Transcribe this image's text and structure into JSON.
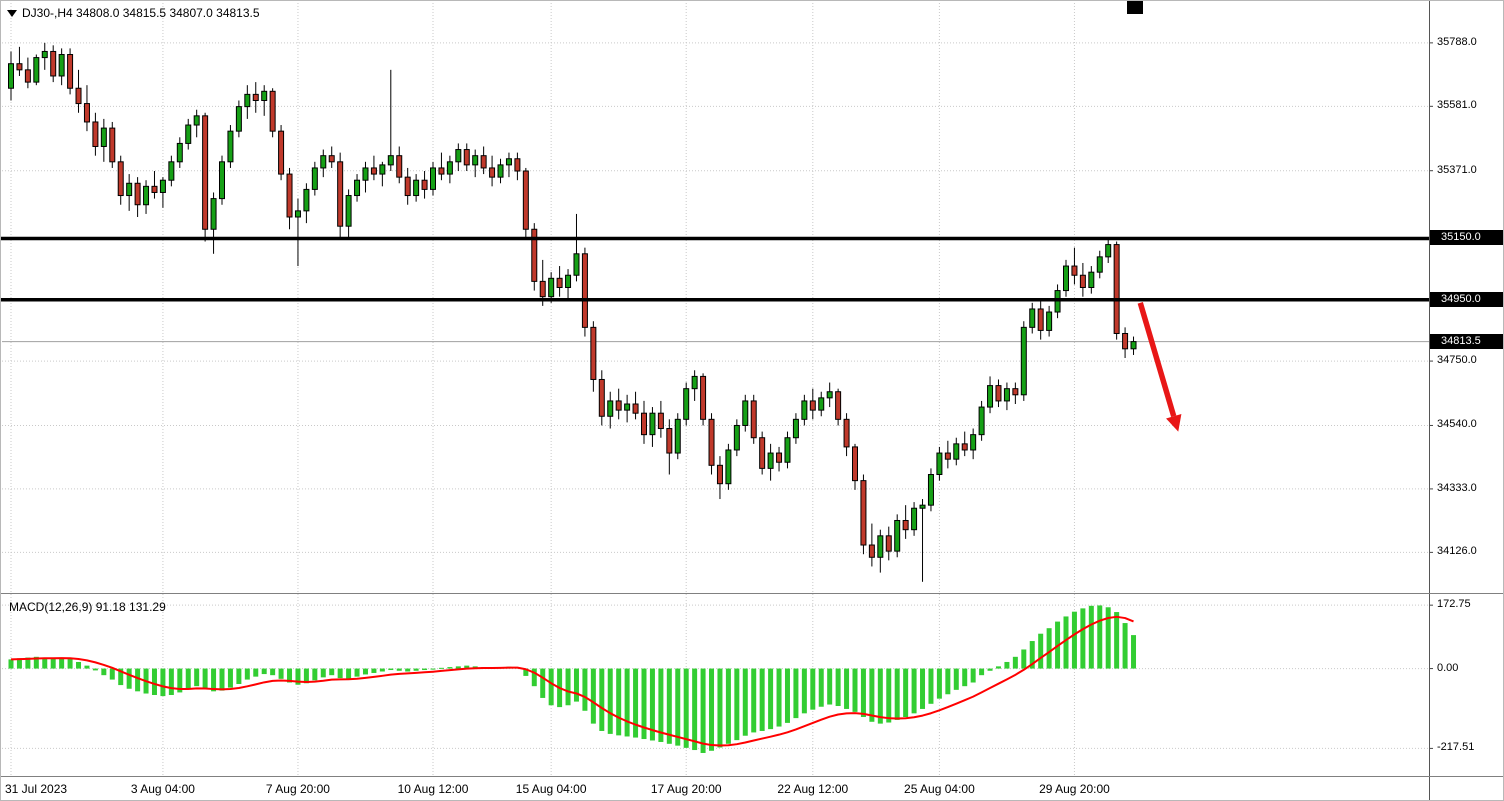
{
  "header": {
    "symbol": "DJ30-",
    "timeframe": "H4",
    "open": "34808.0",
    "high": "34815.5",
    "low": "34807.0",
    "close": "34813.5",
    "display": "DJ30-,H4 34808.0 34815.5 34807.0 34813.5",
    "dropdown_icon": "symbol-dropdown-triangle"
  },
  "colors": {
    "up": "#16a016",
    "down": "#c0392b",
    "wick": "#000000",
    "grid": "#c9c9c9",
    "macd_hist": "#32cd32",
    "macd_signal": "#ff0000",
    "level_line": "#000000",
    "arrow": "#e81717",
    "price_line": "#a0a0a0",
    "label_box_bg": "#000000",
    "label_box_fg": "#ffffff"
  },
  "price_axis": {
    "ticks": [
      {
        "v": 35788.0,
        "label": "35788.0"
      },
      {
        "v": 35581.0,
        "label": "35581.0"
      },
      {
        "v": 35371.0,
        "label": "35371.0"
      },
      {
        "v": 34750.0,
        "label": "34750.0"
      },
      {
        "v": 34540.0,
        "label": "34540.0"
      },
      {
        "v": 34333.0,
        "label": "34333.0"
      },
      {
        "v": 34126.0,
        "label": "34126.0"
      }
    ],
    "level_labels": [
      {
        "v": 35150.0,
        "label": "35150.0"
      },
      {
        "v": 34950.0,
        "label": "34950.0"
      },
      {
        "v": 34813.5,
        "label": "34813.5"
      }
    ]
  },
  "x_axis": {
    "labels": [
      {
        "text": "31 Jul 2023",
        "bar": 0
      },
      {
        "text": "3 Aug 04:00",
        "bar": 18
      },
      {
        "text": "7 Aug 20:00",
        "bar": 34
      },
      {
        "text": "10 Aug 12:00",
        "bar": 50
      },
      {
        "text": "15 Aug 04:00",
        "bar": 64
      },
      {
        "text": "17 Aug 20:00",
        "bar": 80
      },
      {
        "text": "22 Aug 12:00",
        "bar": 95
      },
      {
        "text": "25 Aug 04:00",
        "bar": 110
      },
      {
        "text": "29 Aug 20:00",
        "bar": 126
      }
    ]
  },
  "chart_data": {
    "type": "candlestick",
    "title": "DJ30- H4 price chart with MACD",
    "symbol": "DJ30-",
    "timeframe": "H4",
    "price_ylim": [
      34000,
      35905
    ],
    "hlines": [
      35150.0,
      34950.0
    ],
    "current_price": 34813.5,
    "arrow": {
      "from_bar": 133.8,
      "from_price": 34940,
      "to_bar": 138.3,
      "to_price": 34520
    },
    "candles": [
      [
        35640,
        35760,
        35600,
        35720
      ],
      [
        35720,
        35775,
        35680,
        35700
      ],
      [
        35700,
        35740,
        35640,
        35660
      ],
      [
        35660,
        35750,
        35650,
        35740
      ],
      [
        35740,
        35788,
        35700,
        35760
      ],
      [
        35760,
        35780,
        35660,
        35680
      ],
      [
        35680,
        35770,
        35650,
        35750
      ],
      [
        35750,
        35770,
        35620,
        35640
      ],
      [
        35640,
        35700,
        35560,
        35590
      ],
      [
        35590,
        35650,
        35500,
        35530
      ],
      [
        35530,
        35560,
        35420,
        35450
      ],
      [
        35450,
        35540,
        35400,
        35510
      ],
      [
        35510,
        35530,
        35380,
        35400
      ],
      [
        35400,
        35420,
        35260,
        35290
      ],
      [
        35290,
        35360,
        35240,
        35330
      ],
      [
        35330,
        35350,
        35220,
        35260
      ],
      [
        35260,
        35340,
        35230,
        35320
      ],
      [
        35320,
        35370,
        35280,
        35300
      ],
      [
        35300,
        35350,
        35250,
        35340
      ],
      [
        35340,
        35420,
        35320,
        35400
      ],
      [
        35400,
        35480,
        35380,
        35460
      ],
      [
        35460,
        35540,
        35440,
        35520
      ],
      [
        35520,
        35570,
        35480,
        35550
      ],
      [
        35550,
        35560,
        35140,
        35180
      ],
      [
        35180,
        35300,
        35100,
        35280
      ],
      [
        35280,
        35420,
        35260,
        35400
      ],
      [
        35400,
        35520,
        35380,
        35500
      ],
      [
        35500,
        35600,
        35480,
        35580
      ],
      [
        35580,
        35650,
        35540,
        35620
      ],
      [
        35620,
        35660,
        35560,
        35600
      ],
      [
        35600,
        35650,
        35550,
        35630
      ],
      [
        35630,
        35640,
        35480,
        35500
      ],
      [
        35500,
        35520,
        35340,
        35360
      ],
      [
        35360,
        35380,
        35180,
        35220
      ],
      [
        35220,
        35280,
        35060,
        35240
      ],
      [
        35240,
        35330,
        35200,
        35310
      ],
      [
        35310,
        35400,
        35290,
        35380
      ],
      [
        35380,
        35440,
        35350,
        35420
      ],
      [
        35420,
        35450,
        35380,
        35400
      ],
      [
        35400,
        35430,
        35150,
        35190
      ],
      [
        35190,
        35310,
        35150,
        35290
      ],
      [
        35290,
        35360,
        35270,
        35340
      ],
      [
        35340,
        35400,
        35300,
        35380
      ],
      [
        35380,
        35420,
        35340,
        35360
      ],
      [
        35360,
        35400,
        35320,
        35390
      ],
      [
        35390,
        35700,
        35370,
        35420
      ],
      [
        35420,
        35450,
        35330,
        35350
      ],
      [
        35350,
        35380,
        35260,
        35290
      ],
      [
        35290,
        35360,
        35270,
        35340
      ],
      [
        35340,
        35370,
        35280,
        35310
      ],
      [
        35310,
        35400,
        35290,
        35380
      ],
      [
        35380,
        35430,
        35340,
        35360
      ],
      [
        35360,
        35420,
        35330,
        35400
      ],
      [
        35400,
        35460,
        35370,
        35440
      ],
      [
        35440,
        35460,
        35370,
        35390
      ],
      [
        35390,
        35440,
        35350,
        35420
      ],
      [
        35420,
        35450,
        35360,
        35380
      ],
      [
        35380,
        35420,
        35320,
        35350
      ],
      [
        35350,
        35410,
        35330,
        35390
      ],
      [
        35390,
        35430,
        35350,
        35410
      ],
      [
        35410,
        35430,
        35340,
        35370
      ],
      [
        35370,
        35380,
        35150,
        35180
      ],
      [
        35180,
        35200,
        34980,
        35010
      ],
      [
        35010,
        35080,
        34930,
        34960
      ],
      [
        34960,
        35040,
        34940,
        35020
      ],
      [
        35020,
        35060,
        34960,
        34990
      ],
      [
        34990,
        35050,
        34950,
        35030
      ],
      [
        35030,
        35230,
        35010,
        35100
      ],
      [
        35100,
        35120,
        34830,
        34860
      ],
      [
        34860,
        34880,
        34650,
        34690
      ],
      [
        34690,
        34720,
        34540,
        34570
      ],
      [
        34570,
        34650,
        34530,
        34620
      ],
      [
        34620,
        34660,
        34560,
        34590
      ],
      [
        34590,
        34640,
        34550,
        34610
      ],
      [
        34610,
        34650,
        34560,
        34580
      ],
      [
        34580,
        34620,
        34480,
        34510
      ],
      [
        34510,
        34600,
        34470,
        34580
      ],
      [
        34580,
        34620,
        34500,
        34530
      ],
      [
        34530,
        34560,
        34380,
        34450
      ],
      [
        34450,
        34580,
        34430,
        34560
      ],
      [
        34560,
        34680,
        34540,
        34660
      ],
      [
        34660,
        34720,
        34620,
        34700
      ],
      [
        34700,
        34710,
        34540,
        34560
      ],
      [
        34560,
        34580,
        34380,
        34410
      ],
      [
        34410,
        34440,
        34300,
        34350
      ],
      [
        34350,
        34480,
        34330,
        34460
      ],
      [
        34460,
        34560,
        34440,
        34540
      ],
      [
        34540,
        34640,
        34520,
        34620
      ],
      [
        34620,
        34640,
        34480,
        34500
      ],
      [
        34500,
        34520,
        34380,
        34400
      ],
      [
        34400,
        34480,
        34360,
        34450
      ],
      [
        34450,
        34470,
        34390,
        34420
      ],
      [
        34420,
        34520,
        34400,
        34500
      ],
      [
        34500,
        34580,
        34480,
        34560
      ],
      [
        34560,
        34640,
        34540,
        34620
      ],
      [
        34620,
        34660,
        34560,
        34590
      ],
      [
        34590,
        34650,
        34570,
        34630
      ],
      [
        34630,
        34680,
        34600,
        34650
      ],
      [
        34650,
        34660,
        34540,
        34560
      ],
      [
        34560,
        34580,
        34440,
        34470
      ],
      [
        34470,
        34480,
        34330,
        34360
      ],
      [
        34360,
        34380,
        34120,
        34150
      ],
      [
        34150,
        34220,
        34080,
        34110
      ],
      [
        34110,
        34200,
        34060,
        34180
      ],
      [
        34180,
        34210,
        34100,
        34130
      ],
      [
        34130,
        34250,
        34110,
        34230
      ],
      [
        34230,
        34280,
        34170,
        34200
      ],
      [
        34200,
        34290,
        34180,
        34270
      ],
      [
        34270,
        34300,
        34030,
        34280
      ],
      [
        34280,
        34400,
        34260,
        34380
      ],
      [
        34380,
        34470,
        34360,
        34450
      ],
      [
        34450,
        34490,
        34400,
        34430
      ],
      [
        34430,
        34500,
        34410,
        34480
      ],
      [
        34480,
        34520,
        34440,
        34460
      ],
      [
        34460,
        34530,
        34430,
        34510
      ],
      [
        34510,
        34620,
        34490,
        34600
      ],
      [
        34600,
        34700,
        34580,
        34670
      ],
      [
        34670,
        34690,
        34600,
        34620
      ],
      [
        34620,
        34680,
        34590,
        34660
      ],
      [
        34660,
        34680,
        34610,
        34640
      ],
      [
        34640,
        34880,
        34620,
        34860
      ],
      [
        34860,
        34940,
        34840,
        34920
      ],
      [
        34920,
        34950,
        34820,
        34850
      ],
      [
        34850,
        34930,
        34830,
        34910
      ],
      [
        34910,
        35000,
        34890,
        34980
      ],
      [
        34980,
        35080,
        34960,
        35060
      ],
      [
        35060,
        35120,
        35000,
        35030
      ],
      [
        35030,
        35070,
        34960,
        34990
      ],
      [
        34990,
        35060,
        34970,
        35040
      ],
      [
        35040,
        35110,
        35020,
        35090
      ],
      [
        35090,
        35150,
        35070,
        35130
      ],
      [
        35130,
        35140,
        34820,
        34840
      ],
      [
        34840,
        34860,
        34760,
        34790
      ],
      [
        34790,
        34830,
        34770,
        34813.5
      ]
    ],
    "macd": {
      "label": "MACD(12,26,9) 91.18 131.29",
      "params": "12,26,9",
      "macd_value": 91.18,
      "signal_value": 131.29,
      "ylim": [
        -290,
        195
      ],
      "ticks": [
        {
          "v": 172.75,
          "label": "172.75"
        },
        {
          "v": 0,
          "label": "0.00"
        },
        {
          "v": -217.51,
          "label": "-217.51"
        }
      ],
      "values": [
        25,
        28,
        30,
        32,
        30,
        28,
        30,
        26,
        18,
        8,
        -5,
        -18,
        -30,
        -45,
        -55,
        -62,
        -68,
        -72,
        -75,
        -72,
        -65,
        -56,
        -48,
        -55,
        -62,
        -60,
        -52,
        -42,
        -30,
        -22,
        -15,
        -18,
        -28,
        -38,
        -44,
        -40,
        -32,
        -24,
        -18,
        -26,
        -28,
        -22,
        -16,
        -12,
        -8,
        -4,
        -6,
        -8,
        -6,
        -4,
        -2,
        2,
        4,
        6,
        8,
        6,
        4,
        2,
        3,
        5,
        3,
        -20,
        -48,
        -80,
        -100,
        -105,
        -100,
        -90,
        -115,
        -150,
        -170,
        -178,
        -182,
        -185,
        -188,
        -192,
        -196,
        -200,
        -205,
        -210,
        -216,
        -222,
        -230,
        -224,
        -215,
        -205,
        -195,
        -183,
        -174,
        -170,
        -165,
        -158,
        -148,
        -135,
        -122,
        -112,
        -104,
        -98,
        -102,
        -110,
        -118,
        -132,
        -145,
        -150,
        -147,
        -140,
        -132,
        -122,
        -110,
        -96,
        -82,
        -70,
        -58,
        -48,
        -38,
        -18,
        -6,
        6,
        18,
        32,
        52,
        75,
        95,
        110,
        128,
        142,
        155,
        164,
        171,
        172,
        167,
        154,
        124,
        91.18
      ]
    }
  }
}
